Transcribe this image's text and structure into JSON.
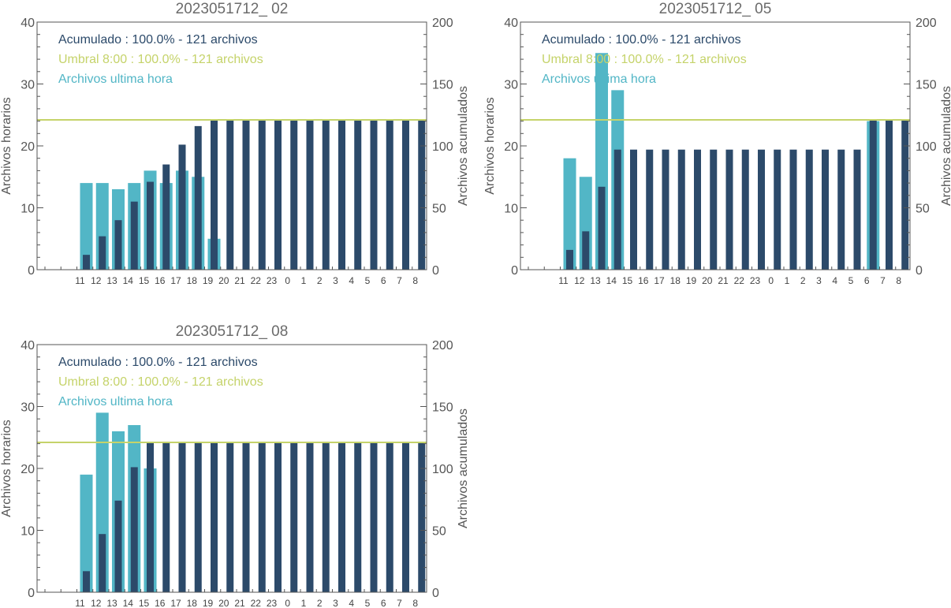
{
  "colors": {
    "hourly": "#52b6c6",
    "cumulative": "#2c4a6a",
    "threshold": "#c5d36a",
    "axis": "#555555"
  },
  "chart_data": [
    {
      "type": "bar",
      "title": "2023051712_ 02",
      "categories": [
        "11",
        "12",
        "13",
        "14",
        "15",
        "16",
        "17",
        "18",
        "19",
        "20",
        "21",
        "22",
        "23",
        "0",
        "1",
        "2",
        "3",
        "4",
        "5",
        "6",
        "7",
        "8"
      ],
      "ylabel": "Archivos horarios",
      "y2label": "Archivos acumulados",
      "ylim": [
        0,
        40
      ],
      "y2lim": [
        0,
        200
      ],
      "yticks": [
        "0",
        "10",
        "20",
        "30",
        "40"
      ],
      "y2ticks": [
        "0",
        "50",
        "100",
        "150",
        "200"
      ],
      "legend": [
        "Acumulado : 100.0% - 121 archivos",
        "Umbral 8:00 : 100.0% - 121 archivos",
        "Archivos ultima hora"
      ],
      "threshold": 121,
      "series": [
        {
          "name": "Archivos ultima hora",
          "axis": "left",
          "values": [
            14,
            14,
            13,
            14,
            16,
            14,
            16,
            15,
            5,
            0,
            0,
            0,
            0,
            0,
            0,
            0,
            0,
            0,
            0,
            0,
            0,
            0
          ]
        },
        {
          "name": "Acumulado",
          "axis": "right",
          "values": [
            12,
            27,
            40,
            55,
            71,
            85,
            101,
            116,
            121,
            121,
            121,
            121,
            121,
            121,
            121,
            121,
            121,
            121,
            121,
            121,
            121,
            121
          ]
        }
      ]
    },
    {
      "type": "bar",
      "title": "2023051712_ 05",
      "categories": [
        "11",
        "12",
        "13",
        "14",
        "15",
        "16",
        "17",
        "18",
        "19",
        "20",
        "21",
        "22",
        "23",
        "0",
        "1",
        "2",
        "3",
        "4",
        "5",
        "6",
        "7",
        "8"
      ],
      "ylabel": "Archivos horarios",
      "y2label": "Archivos acumulados",
      "ylim": [
        0,
        40
      ],
      "y2lim": [
        0,
        200
      ],
      "yticks": [
        "0",
        "10",
        "20",
        "30",
        "40"
      ],
      "y2ticks": [
        "0",
        "50",
        "100",
        "150",
        "200"
      ],
      "legend": [
        "Acumulado : 100.0% - 121 archivos",
        "Umbral 8:00 : 100.0% - 121 archivos",
        "Archivos ultima hora"
      ],
      "threshold": 121,
      "series": [
        {
          "name": "Archivos ultima hora",
          "axis": "left",
          "values": [
            18,
            15,
            35,
            29,
            0,
            0,
            0,
            0,
            0,
            0,
            0,
            0,
            0,
            0,
            0,
            0,
            0,
            0,
            0,
            24,
            0,
            0
          ]
        },
        {
          "name": "Acumulado",
          "axis": "right",
          "values": [
            16,
            31,
            67,
            97,
            97,
            97,
            97,
            97,
            97,
            97,
            97,
            97,
            97,
            97,
            97,
            97,
            97,
            97,
            97,
            121,
            121,
            121
          ]
        }
      ]
    },
    {
      "type": "bar",
      "title": "2023051712_ 08",
      "categories": [
        "11",
        "12",
        "13",
        "14",
        "15",
        "16",
        "17",
        "18",
        "19",
        "20",
        "21",
        "22",
        "23",
        "0",
        "1",
        "2",
        "3",
        "4",
        "5",
        "6",
        "7",
        "8"
      ],
      "ylabel": "Archivos horarios",
      "y2label": "Archivos acumulados",
      "ylim": [
        0,
        40
      ],
      "y2lim": [
        0,
        200
      ],
      "yticks": [
        "0",
        "10",
        "20",
        "30",
        "40"
      ],
      "y2ticks": [
        "0",
        "50",
        "100",
        "150",
        "200"
      ],
      "legend": [
        "Acumulado : 100.0% - 121 archivos",
        "Umbral 8:00 : 100.0% - 121 archivos",
        "Archivos ultima hora"
      ],
      "threshold": 121,
      "series": [
        {
          "name": "Archivos ultima hora",
          "axis": "left",
          "values": [
            19,
            29,
            26,
            27,
            20,
            0,
            0,
            0,
            0,
            0,
            0,
            0,
            0,
            0,
            0,
            0,
            0,
            0,
            0,
            0,
            0,
            0
          ]
        },
        {
          "name": "Acumulado",
          "axis": "right",
          "values": [
            17,
            47,
            74,
            101,
            121,
            121,
            121,
            121,
            121,
            121,
            121,
            121,
            121,
            121,
            121,
            121,
            121,
            121,
            121,
            121,
            121,
            121
          ]
        }
      ]
    }
  ]
}
